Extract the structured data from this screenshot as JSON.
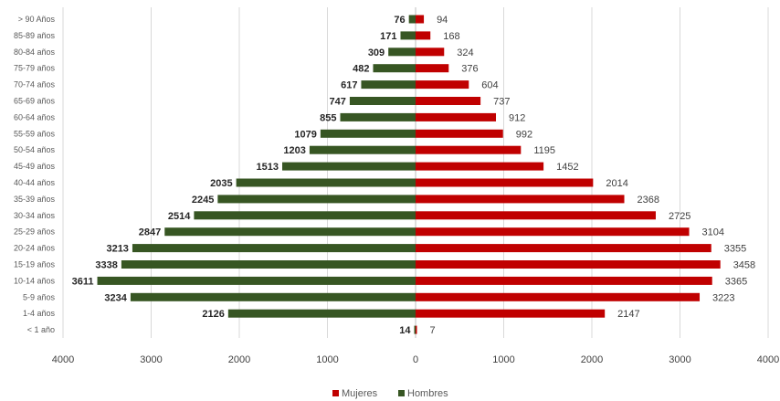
{
  "chart_data": {
    "type": "bar",
    "orientation": "horizontal",
    "layout": "population-pyramid",
    "categories": [
      "> 90 Años",
      "85-89 años",
      "80-84 años",
      "75-79 años",
      "70-74 años",
      "65-69 años",
      "60-64 años",
      "55-59 años",
      "50-54 años",
      "45-49 años",
      "40-44 años",
      "35-39 años",
      "30-34 años",
      "25-29 años",
      "20-24 años",
      "15-19 años",
      "10-14 años",
      "5-9 años",
      "1-4 años",
      "< 1 año"
    ],
    "series": [
      {
        "name": "Hombres",
        "color": "#375623",
        "side": "left",
        "values": [
          76,
          171,
          309,
          482,
          617,
          747,
          855,
          1079,
          1203,
          1513,
          2035,
          2245,
          2514,
          2847,
          3213,
          3338,
          3611,
          3234,
          2126,
          14
        ]
      },
      {
        "name": "Mujeres",
        "color": "#c00000",
        "side": "right",
        "values": [
          94,
          168,
          324,
          376,
          604,
          737,
          912,
          992,
          1195,
          1452,
          2014,
          2368,
          2725,
          3104,
          3355,
          3458,
          3365,
          3223,
          2147,
          7
        ]
      }
    ],
    "x_ticks": [
      "4000",
      "3000",
      "2000",
      "1000",
      "0",
      "1000",
      "2000",
      "3000",
      "4000"
    ],
    "xlim": [
      -4000,
      4000
    ],
    "grid": true,
    "legend": {
      "position": "bottom",
      "items": [
        "Mujeres",
        "Hombres"
      ]
    }
  }
}
